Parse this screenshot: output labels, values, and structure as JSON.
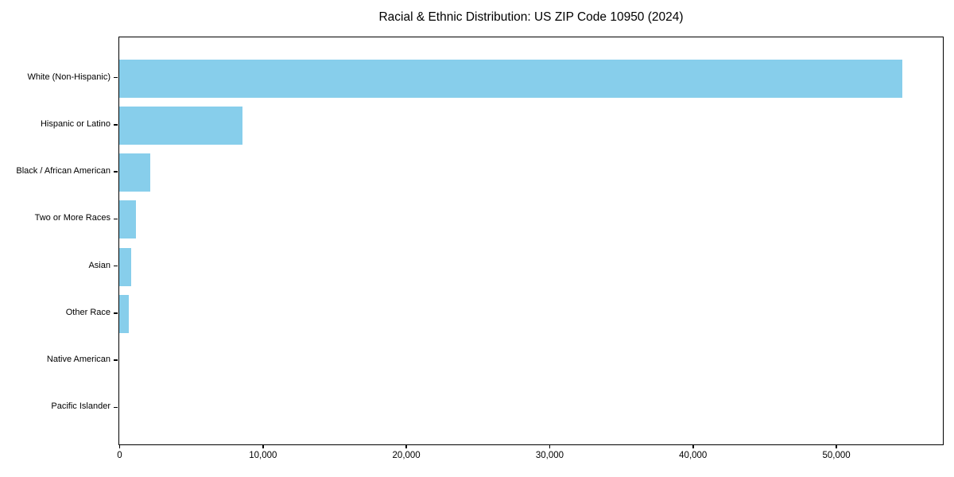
{
  "chart_data": {
    "type": "bar",
    "orientation": "horizontal",
    "title": "Racial & Ethnic Distribution: US ZIP Code 10950 (2024)",
    "categories": [
      "White (Non-Hispanic)",
      "Hispanic or Latino",
      "Black / African American",
      "Two or More Races",
      "Asian",
      "Other Race",
      "Native American",
      "Pacific Islander"
    ],
    "values": [
      54600,
      8600,
      2150,
      1160,
      830,
      660,
      0,
      0
    ],
    "xlabel": "",
    "ylabel": "",
    "xlim": [
      0,
      57400
    ],
    "x_ticks": [
      0,
      10000,
      20000,
      30000,
      40000,
      50000
    ],
    "x_tick_labels": [
      "0",
      "10,000",
      "20,000",
      "30,000",
      "40,000",
      "50,000"
    ],
    "bar_color": "#87CEEB",
    "grid": false,
    "legend": false,
    "spine_color": "#000000",
    "background_color": "#ffffff"
  }
}
